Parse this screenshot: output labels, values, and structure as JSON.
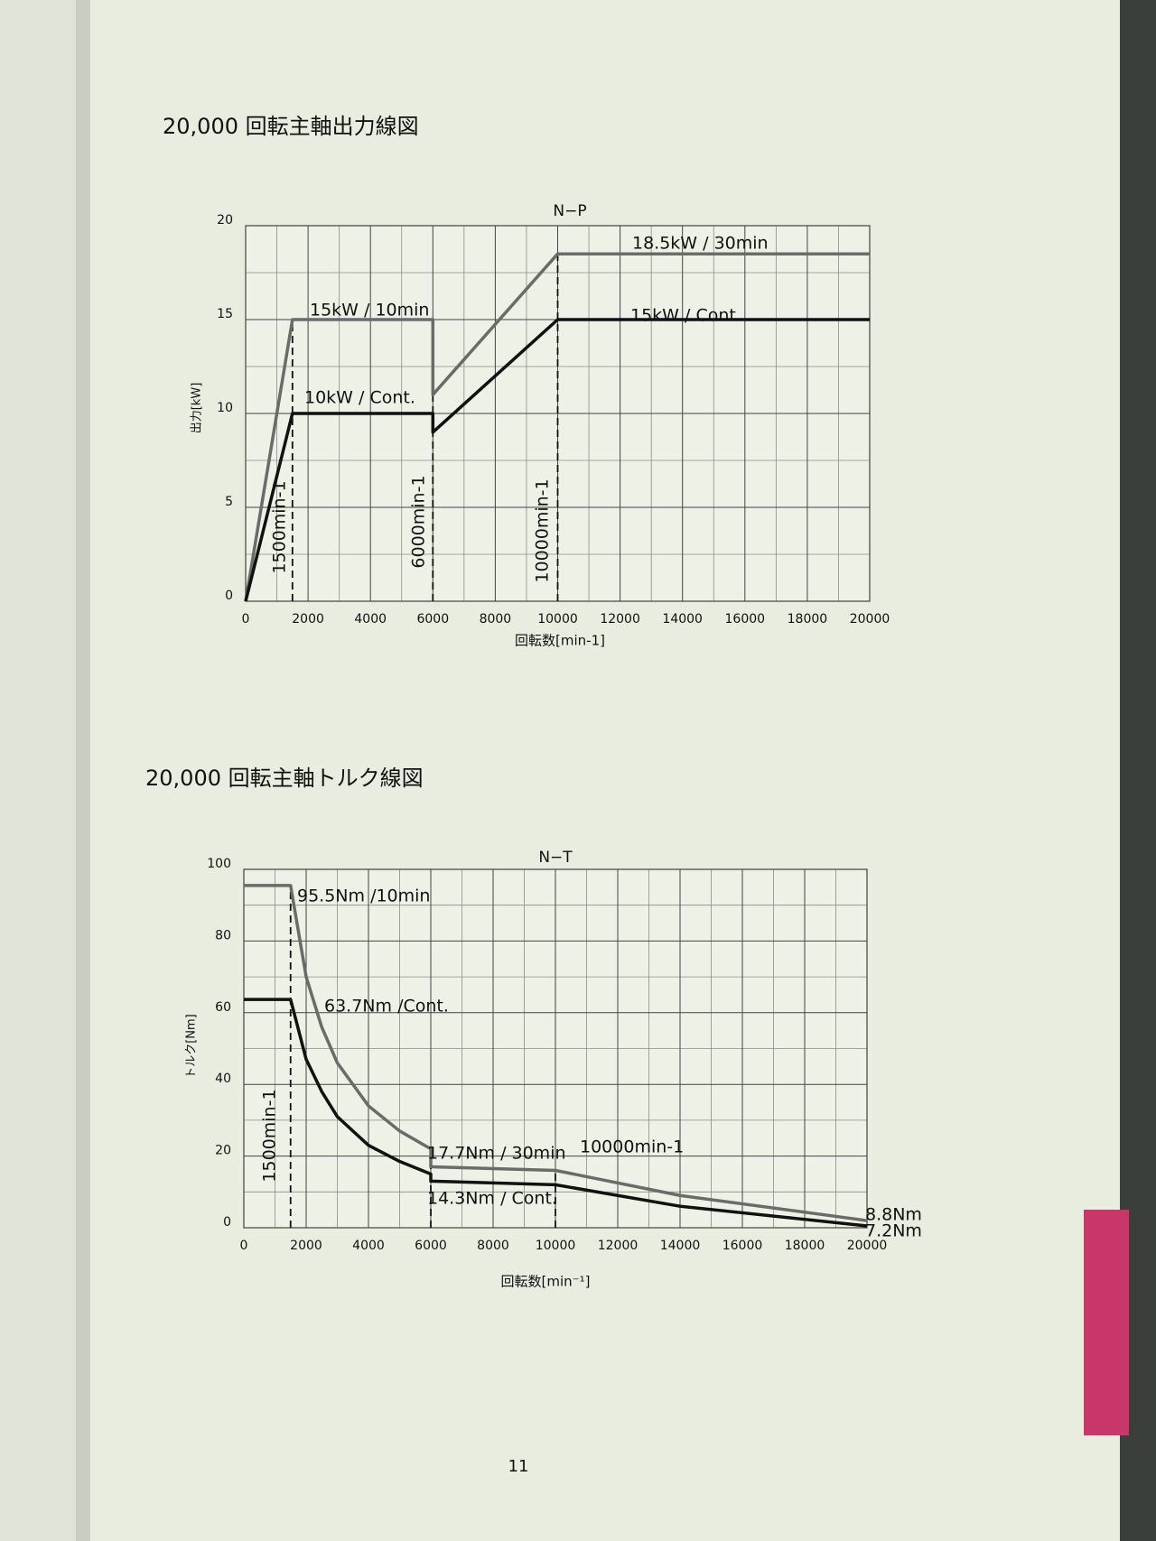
{
  "page": {
    "headings": [
      "20,000 回転主軸出力線図",
      "20,000 回転主軸トルク線図"
    ],
    "page_number": "11"
  },
  "chart_data": [
    {
      "type": "line",
      "title": "N−P",
      "xlabel": "回転数[min-1]",
      "ylabel": "出力[kW]",
      "xlim": [
        0,
        20000
      ],
      "ylim": [
        0,
        20
      ],
      "xticks": [
        0,
        2000,
        4000,
        6000,
        8000,
        10000,
        12000,
        14000,
        16000,
        18000,
        20000
      ],
      "yticks": [
        0,
        5,
        10,
        15,
        20
      ],
      "minor_xticks": [
        1000,
        3000,
        5000,
        7000,
        9000,
        11000,
        13000,
        15000,
        17000,
        19000
      ],
      "minor_yticks": [
        2.5,
        7.5,
        12.5,
        17.5
      ],
      "grid": true,
      "series": [
        {
          "color": "#6b6b6b",
          "x": [
            0,
            1500,
            6000,
            6000,
            10000,
            20000
          ],
          "values": [
            0,
            15,
            15,
            11,
            18.5,
            18.5
          ]
        },
        {
          "color": "#111111",
          "x": [
            0,
            1500,
            6000,
            6000,
            10000,
            20000
          ],
          "values": [
            0,
            10,
            10,
            9,
            15,
            15
          ]
        }
      ],
      "vlines": [
        1500,
        6000,
        10000
      ],
      "annotations": [
        "15kW / 10min",
        "18.5kW / 30min",
        "10kW / Cont.",
        "15kW / Cont.",
        "1500min-1",
        "6000min-1",
        "10000min-1"
      ]
    },
    {
      "type": "line",
      "title": "N−T",
      "xlabel": "回転数[min⁻¹]",
      "ylabel": "トルク[Nm]",
      "xlim": [
        0,
        20000
      ],
      "ylim": [
        0,
        100
      ],
      "xticks": [
        0,
        2000,
        4000,
        6000,
        8000,
        10000,
        12000,
        14000,
        16000,
        18000,
        20000
      ],
      "yticks": [
        0,
        20,
        40,
        60,
        80,
        100
      ],
      "minor_xticks": [
        1000,
        3000,
        5000,
        7000,
        9000,
        11000,
        13000,
        15000,
        17000,
        19000
      ],
      "minor_yticks": [
        10,
        30,
        50,
        70,
        90
      ],
      "grid": true,
      "series": [
        {
          "color": "#6b6b6b",
          "x": [
            0,
            1500,
            2000,
            2500,
            3000,
            4000,
            5000,
            6000,
            6000,
            10000,
            14000,
            20000
          ],
          "values": [
            95.5,
            95.5,
            70,
            56,
            46,
            34,
            27,
            22,
            17,
            16,
            9,
            2
          ]
        },
        {
          "color": "#111111",
          "x": [
            0,
            1500,
            2000,
            2500,
            3000,
            4000,
            5000,
            6000,
            6000,
            10000,
            14000,
            20000
          ],
          "values": [
            63.7,
            63.7,
            47,
            38,
            31,
            23,
            18.5,
            15,
            13,
            12,
            6,
            0.5
          ]
        }
      ],
      "vlines": [
        1500,
        6000,
        10000
      ],
      "annotations": [
        "95.5Nm /10min",
        "63.7Nm /Cont.",
        "17.7Nm / 30min",
        "14.3Nm / Cont.",
        "10000min-1",
        "1500min-1",
        "8.8Nm",
        "7.2Nm"
      ]
    }
  ]
}
